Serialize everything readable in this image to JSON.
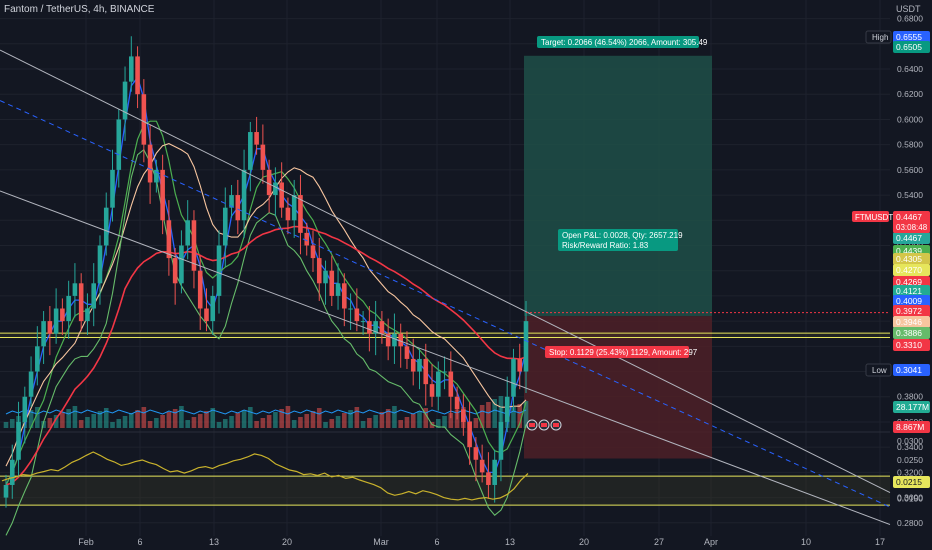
{
  "header": {
    "symbol_title": "Fantom / TetherUS, 4h, BINANCE",
    "currency": "USDT",
    "ticker": "FTMUSDT",
    "countdown": "03:08:48"
  },
  "colors": {
    "background": "#131722",
    "up": "#26a69a",
    "down": "#ef5350",
    "target_zone": "#1e4f48",
    "stop_zone": "#4d2027",
    "channel": "#b2b5be",
    "channel_mid": "#2962ff",
    "support": "#e6e65c",
    "ema200": "#f23645",
    "oscillator": "#c9b22c"
  },
  "chart_data": [
    {
      "type": "candlestick",
      "title": "Fantom / TetherUS, 4h, BINANCE",
      "ylim": [
        0.26,
        0.68
      ],
      "y_ticks": [
        "0.6800",
        "0.6600",
        "0.6400",
        "0.6200",
        "0.6000",
        "0.5800",
        "0.5600",
        "0.5400",
        "0.5200",
        "0.5000",
        "0.4800",
        "0.4600",
        "0.4400",
        "0.4200",
        "0.4000",
        "0.3800",
        "0.3600",
        "0.3400",
        "0.3200",
        "0.3000",
        "0.2800"
      ],
      "x_tick_labels": [
        "Feb",
        "6",
        "13",
        "20",
        "Mar",
        "6",
        "13",
        "20",
        "27",
        "Apr",
        "10",
        "17"
      ],
      "close_series": [
        0.31,
        0.33,
        0.36,
        0.38,
        0.4,
        0.42,
        0.44,
        0.43,
        0.45,
        0.44,
        0.46,
        0.47,
        0.44,
        0.45,
        0.47,
        0.5,
        0.53,
        0.56,
        0.6,
        0.63,
        0.65,
        0.62,
        0.58,
        0.55,
        0.56,
        0.52,
        0.49,
        0.47,
        0.5,
        0.52,
        0.48,
        0.45,
        0.44,
        0.46,
        0.5,
        0.53,
        0.54,
        0.52,
        0.56,
        0.59,
        0.58,
        0.56,
        0.54,
        0.55,
        0.53,
        0.52,
        0.54,
        0.51,
        0.5,
        0.49,
        0.47,
        0.48,
        0.46,
        0.47,
        0.45,
        0.45,
        0.44,
        0.44,
        0.43,
        0.44,
        0.43,
        0.42,
        0.43,
        0.42,
        0.41,
        0.4,
        0.41,
        0.39,
        0.38,
        0.4,
        0.4,
        0.38,
        0.37,
        0.36,
        0.34,
        0.33,
        0.32,
        0.31,
        0.33,
        0.36,
        0.38,
        0.41,
        0.4,
        0.44
      ],
      "price_labels": [
        {
          "label": "High",
          "value": 0.6555,
          "text": "0.6555"
        },
        {
          "label": "",
          "value": 0.6505,
          "text": "0.6505"
        },
        {
          "label": "",
          "value": 0.4467,
          "text": "0.4467"
        },
        {
          "label": "",
          "value": 0.4439,
          "text": "0.4439"
        },
        {
          "label": "",
          "value": 0.4305,
          "text": "0.4305"
        },
        {
          "label": "",
          "value": 0.427,
          "text": "0.4270"
        },
        {
          "label": "",
          "value": 0.4269,
          "text": "0.4269"
        },
        {
          "label": "",
          "value": 0.4121,
          "text": "0.4121"
        },
        {
          "label": "",
          "value": 0.4009,
          "text": "0.4009"
        },
        {
          "label": "",
          "value": 0.3972,
          "text": "0.3972"
        },
        {
          "label": "",
          "value": 0.3946,
          "text": "0.3946"
        },
        {
          "label": "",
          "value": 0.3886,
          "text": "0.3886"
        },
        {
          "label": "",
          "value": 0.331,
          "text": "0.3310"
        },
        {
          "label": "Low",
          "value": 0.3041,
          "text": "0.3041"
        }
      ],
      "current_price": {
        "value": 0.4467,
        "text": "0.4467"
      },
      "support_zones": [
        [
          0.427,
          0.4305
        ],
        [
          0.294,
          0.317
        ]
      ],
      "position": {
        "target_text": "Target: 0.2066 (46.54%) 2066, Amount: 305.49",
        "stop_text": "Stop: 0.1129 (25.43%) 1129, Amount: 297",
        "open_text": "Open P&L: 0.0028, Qty: 2657.219",
        "ratio_text": "Risk/Reward Ratio: 1.83",
        "entry": 0.4439,
        "target": 0.6505,
        "stop": 0.331
      },
      "volume_labels": [
        "28.177M",
        "8.867M"
      ]
    },
    {
      "type": "line",
      "name": "oscillator",
      "ylim": [
        0.0125,
        0.031
      ],
      "y_ticks": [
        "0.0300",
        "0.0250",
        "0.0200",
        "0.0150"
      ],
      "current": {
        "value": 0.0215,
        "text": "0.0215"
      },
      "values": [
        0.0196,
        0.0202,
        0.0206,
        0.0212,
        0.021,
        0.0216,
        0.022,
        0.0225,
        0.0222,
        0.0232,
        0.0244,
        0.0252,
        0.0262,
        0.0271,
        0.0262,
        0.0252,
        0.0245,
        0.0236,
        0.024,
        0.0246,
        0.025,
        0.0243,
        0.0238,
        0.0228,
        0.0219,
        0.0222,
        0.0216,
        0.0222,
        0.023,
        0.0233,
        0.0228,
        0.0236,
        0.0241,
        0.0248,
        0.0252,
        0.0258,
        0.0266,
        0.0262,
        0.0254,
        0.024,
        0.0232,
        0.0224,
        0.022,
        0.0212,
        0.0214,
        0.021,
        0.0216,
        0.0206,
        0.021,
        0.0202,
        0.0205,
        0.0198,
        0.0192,
        0.0186,
        0.0178,
        0.0164,
        0.0158,
        0.0162,
        0.0168,
        0.0162,
        0.017,
        0.0166,
        0.016,
        0.0152,
        0.0148,
        0.0146,
        0.015,
        0.0146,
        0.015,
        0.0152,
        0.0148,
        0.0151,
        0.016,
        0.0175,
        0.0198,
        0.0215
      ]
    }
  ]
}
